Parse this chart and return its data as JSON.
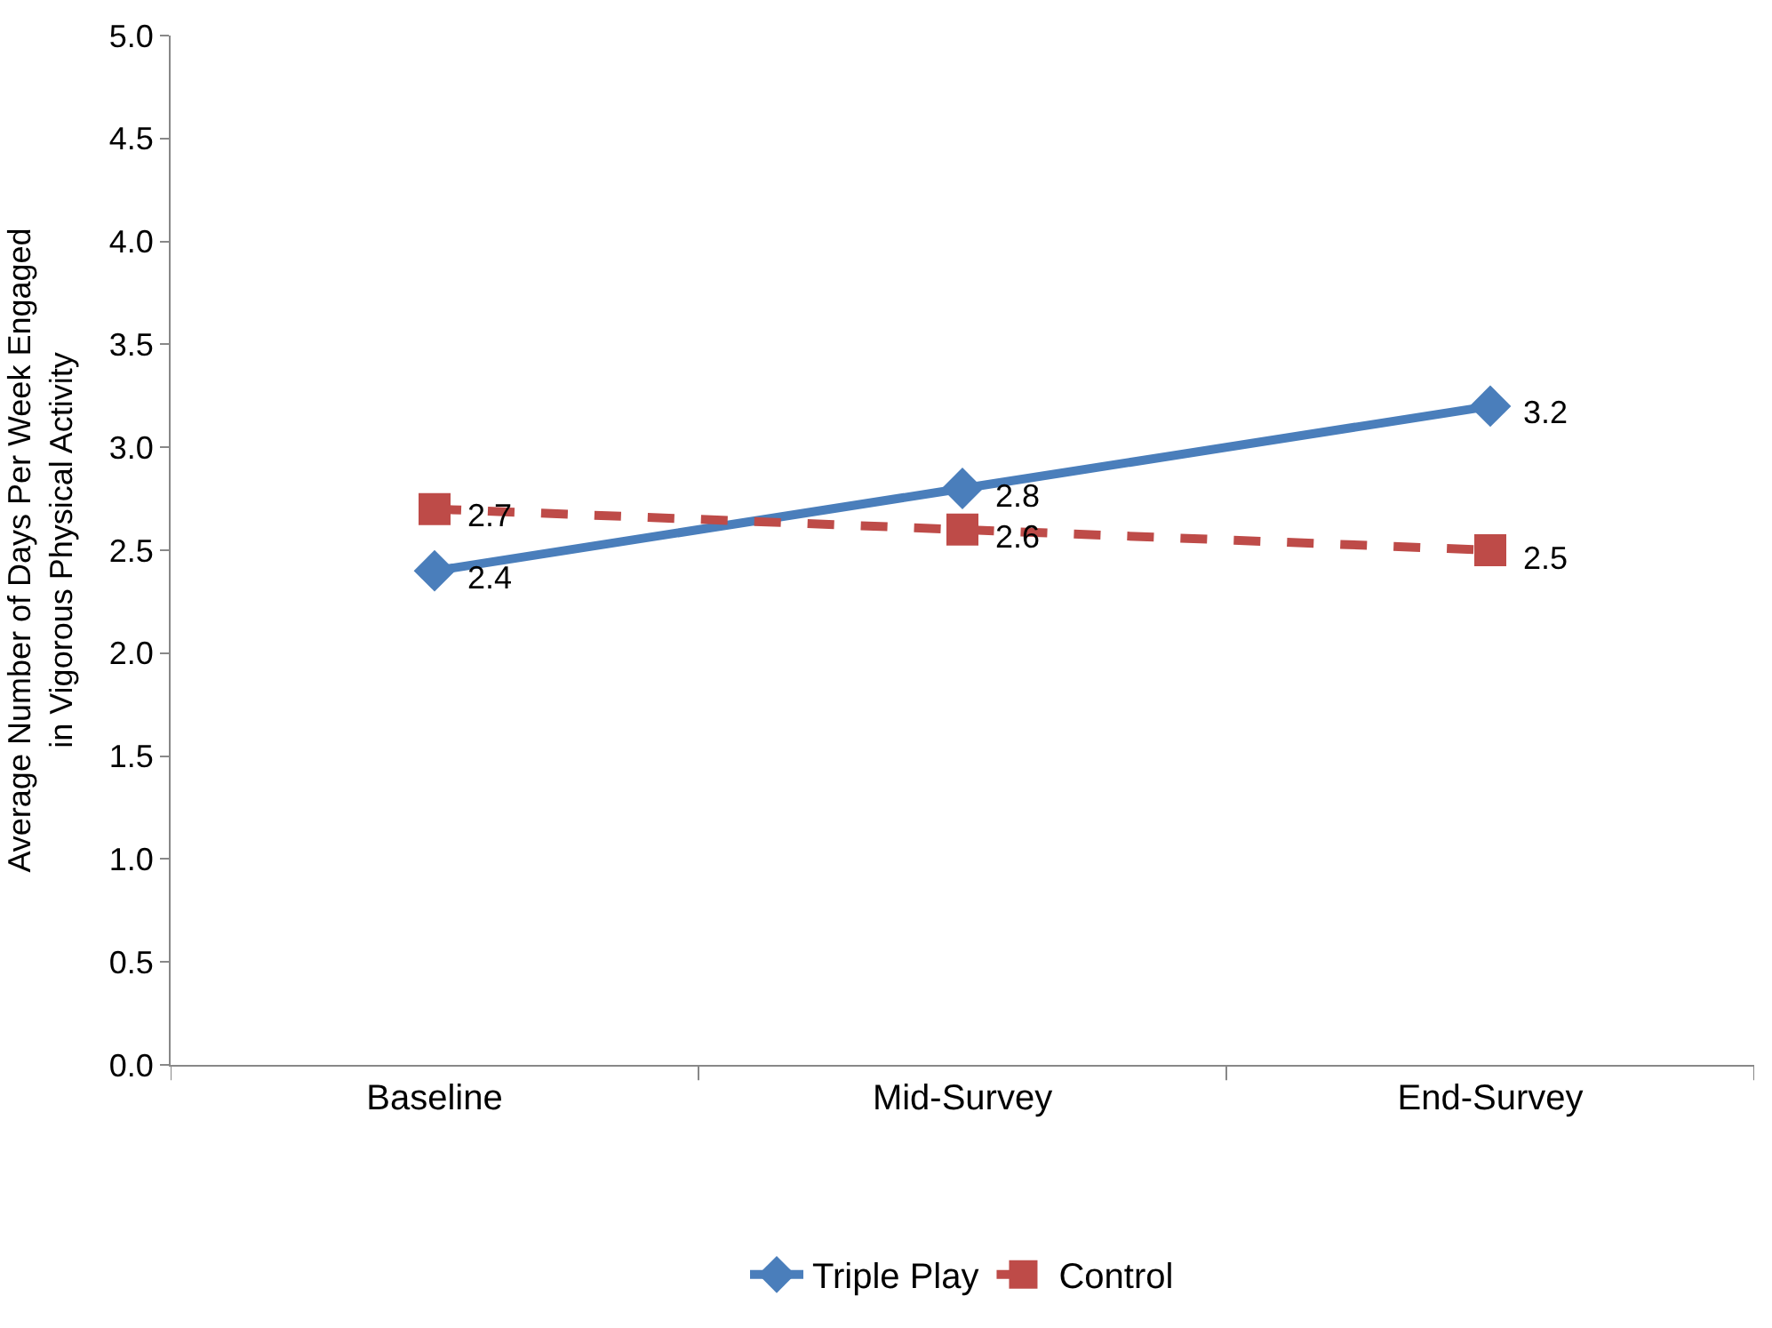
{
  "chart_data": {
    "type": "line",
    "ylabel": "Average Number of Days Per Week Engaged in Vigorous Physical Activity",
    "categories": [
      "Baseline",
      "Mid-Survey",
      "End-Survey"
    ],
    "series": [
      {
        "name": "Triple Play",
        "color": "#4a7ebb",
        "values": [
          2.4,
          2.8,
          3.2
        ],
        "marker": "diamond",
        "line_style": "solid"
      },
      {
        "name": "Control",
        "color": "#be4b48",
        "values": [
          2.7,
          2.6,
          2.5
        ],
        "marker": "square",
        "line_style": "dashed"
      }
    ],
    "ylim": [
      0,
      5
    ],
    "yticks": [
      {
        "value": 0,
        "label": "0.0"
      },
      {
        "value": 0.5,
        "label": "0.5"
      },
      {
        "value": 1,
        "label": "1.0"
      },
      {
        "value": 1.5,
        "label": "1.5"
      },
      {
        "value": 2,
        "label": "2.0"
      },
      {
        "value": 2.5,
        "label": "2.5"
      },
      {
        "value": 3,
        "label": "3.0"
      },
      {
        "value": 3.5,
        "label": "3.5"
      },
      {
        "value": 4,
        "label": "4.0"
      },
      {
        "value": 4.5,
        "label": "4.5"
      },
      {
        "value": 5,
        "label": "5.0"
      }
    ],
    "legend": "bottom",
    "data_labels": true
  }
}
